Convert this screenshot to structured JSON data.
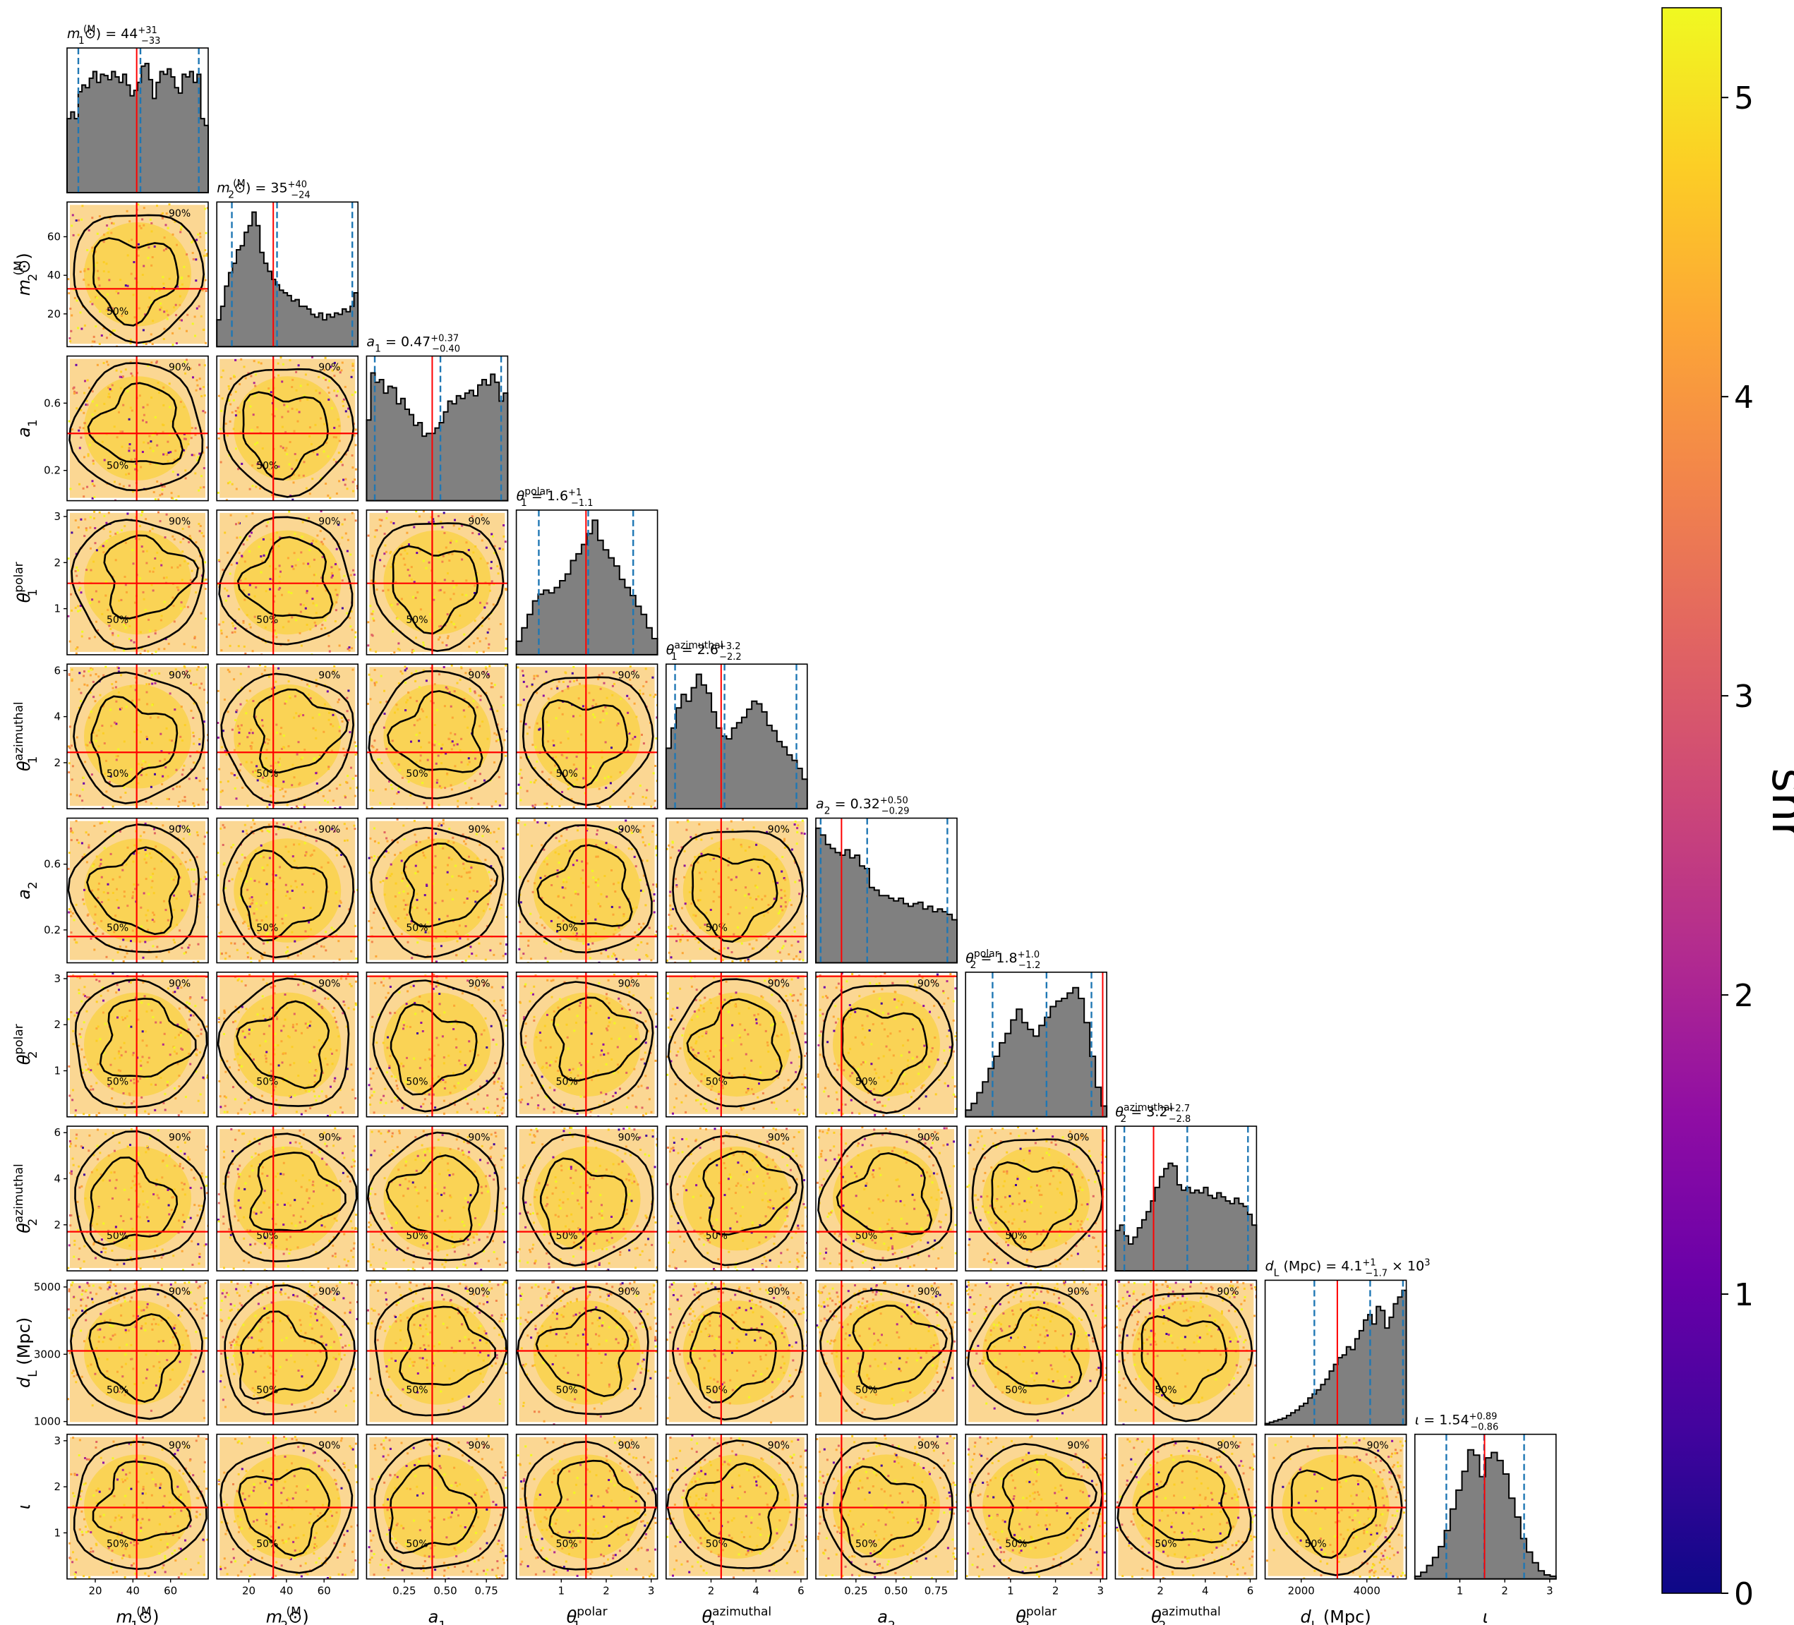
{
  "colors": {
    "hist_fill": "#808080",
    "hist_edge": "#000000",
    "truth_line": "#ff0000",
    "quantile_line": "#1f77b4",
    "contour": "#000000",
    "colormap": "plasma"
  },
  "chart_data": {
    "type": "scatter",
    "variant": "corner",
    "colorbar": {
      "label": "snr",
      "range": [
        0,
        5.3
      ],
      "ticks": [
        "0",
        "1",
        "2",
        "3",
        "4",
        "5"
      ]
    },
    "contour_levels": [
      "50%",
      "90%"
    ],
    "parameters": [
      {
        "key": "m1",
        "title": "m_1 (M_⊙) = 44^{+31}_{-33}",
        "title_parts": [
          "m",
          "1",
          " (M",
          "⊙",
          ") = 44",
          "+31",
          "−33"
        ],
        "xlabel_parts": [
          "m",
          "1",
          " (M",
          "⊙",
          ")"
        ],
        "range": [
          5,
          80
        ],
        "truth": 42,
        "quantiles": [
          11,
          44,
          75
        ],
        "ticks": [
          20,
          40,
          60
        ],
        "tick_labels": [
          "20",
          "40",
          "60"
        ]
      },
      {
        "key": "m2",
        "title": "m_2 (M_⊙) = 35^{+40}_{-24}",
        "title_parts": [
          "m",
          "2",
          " (M",
          "⊙",
          ") = 35",
          "+40",
          "−24"
        ],
        "xlabel_parts": [
          "m",
          "2",
          " (M",
          "⊙",
          ")"
        ],
        "range": [
          3,
          78
        ],
        "truth": 33,
        "quantiles": [
          11,
          35,
          75
        ],
        "ticks": [
          20,
          40,
          60
        ],
        "tick_labels": [
          "20",
          "40",
          "60"
        ]
      },
      {
        "key": "a1",
        "title": "a_1 = 0.47^{+0.37}_{-0.40}",
        "title_parts": [
          "a",
          "1",
          "",
          "",
          " = 0.47",
          "+0.37",
          "−0.40"
        ],
        "xlabel_parts": [
          "a",
          "1",
          "",
          "",
          ""
        ],
        "range": [
          0.02,
          0.88
        ],
        "truth": 0.42,
        "quantiles": [
          0.07,
          0.47,
          0.84
        ],
        "ticks": [
          0.25,
          0.5,
          0.75
        ],
        "tick_labels": [
          "0.25",
          "0.50",
          "0.75"
        ],
        "yticks": [
          0.2,
          0.6
        ],
        "ytick_labels": [
          "0.2",
          "0.6"
        ]
      },
      {
        "key": "theta1p",
        "title": "θ_1^polar = 1.6^{+1}_{-1.1}",
        "title_parts": [
          "θ",
          "1",
          "polar",
          "",
          " = 1.6",
          "+1",
          "−1.1"
        ],
        "xlabel_parts": [
          "θ",
          "1",
          "polar",
          "",
          ""
        ],
        "range": [
          0,
          3.14
        ],
        "truth": 1.55,
        "quantiles": [
          0.5,
          1.6,
          2.6
        ],
        "ticks": [
          1,
          2,
          3
        ],
        "tick_labels": [
          "1",
          "2",
          "3"
        ]
      },
      {
        "key": "theta1a",
        "title": "θ_1^azimuthal = 2.6^{+3.2}_{-2.2}",
        "title_parts": [
          "θ",
          "1",
          "azimuthal",
          "",
          " = 2.6",
          "+3.2",
          "−2.2"
        ],
        "xlabel_parts": [
          "θ",
          "1",
          "azimuthal",
          "",
          ""
        ],
        "range": [
          0,
          6.28
        ],
        "truth": 2.45,
        "quantiles": [
          0.4,
          2.6,
          5.8
        ],
        "ticks": [
          2,
          4,
          6
        ],
        "tick_labels": [
          "2",
          "4",
          "6"
        ]
      },
      {
        "key": "a2",
        "title": "a_2 = 0.32^{+0.50}_{-0.29}",
        "title_parts": [
          "a",
          "2",
          "",
          "",
          " = 0.32",
          "+0.50",
          "−0.29"
        ],
        "xlabel_parts": [
          "a",
          "2",
          "",
          "",
          ""
        ],
        "range": [
          0.0,
          0.88
        ],
        "truth": 0.16,
        "quantiles": [
          0.03,
          0.32,
          0.82
        ],
        "ticks": [
          0.25,
          0.5,
          0.75
        ],
        "tick_labels": [
          "0.25",
          "0.50",
          "0.75"
        ],
        "yticks": [
          0.2,
          0.6
        ],
        "ytick_labels": [
          "0.2",
          "0.6"
        ]
      },
      {
        "key": "theta2p",
        "title": "θ_2^polar = 1.8^{+1.0}_{-1.2}",
        "title_parts": [
          "θ",
          "2",
          "polar",
          "",
          " = 1.8",
          "+1.0",
          "−1.2"
        ],
        "xlabel_parts": [
          "θ",
          "2",
          "polar",
          "",
          ""
        ],
        "range": [
          0,
          3.14
        ],
        "truth": 3.05,
        "quantiles": [
          0.6,
          1.8,
          2.8
        ],
        "ticks": [
          1,
          2,
          3
        ],
        "tick_labels": [
          "1",
          "2",
          "3"
        ]
      },
      {
        "key": "theta2a",
        "title": "θ_2^azimuthal = 3.2^{+2.7}_{-2.8}",
        "title_parts": [
          "θ",
          "2",
          "azimuthal",
          "",
          " = 3.2",
          "+2.7",
          "−2.8"
        ],
        "xlabel_parts": [
          "θ",
          "2",
          "azimuthal",
          "",
          ""
        ],
        "range": [
          0,
          6.28
        ],
        "truth": 1.7,
        "quantiles": [
          0.4,
          3.2,
          5.9
        ],
        "ticks": [
          2,
          4,
          6
        ],
        "tick_labels": [
          "2",
          "4",
          "6"
        ]
      },
      {
        "key": "dL",
        "title": "d_L (Mpc) = 4.1^{+1}_{-1.7} × 10^3",
        "title_parts": [
          "d",
          "L",
          "",
          " (Mpc)",
          " = 4.1",
          "+1",
          "−1.7",
          " × 10",
          "3"
        ],
        "xlabel_parts": [
          "d",
          "L",
          "",
          "",
          " (Mpc)"
        ],
        "range": [
          900,
          5200
        ],
        "truth": 3100,
        "quantiles": [
          2400,
          4100,
          5100
        ],
        "ticks": [
          2000,
          4000
        ],
        "tick_labels": [
          "2000",
          "4000"
        ],
        "yticks": [
          1000,
          3000,
          5000
        ],
        "ytick_labels": [
          "1000",
          "3000",
          "5000"
        ]
      },
      {
        "key": "iota",
        "title": "ι = 1.54^{+0.89}_{-0.86}",
        "title_parts": [
          "ι",
          "",
          "",
          "",
          " = 1.54",
          "+0.89",
          "−0.86"
        ],
        "xlabel_parts": [
          "ι",
          "",
          "",
          "",
          ""
        ],
        "range": [
          0,
          3.14
        ],
        "truth": 1.55,
        "quantiles": [
          0.7,
          1.54,
          2.43
        ],
        "ticks": [
          1,
          2,
          3
        ],
        "tick_labels": [
          "1",
          "2",
          "3"
        ]
      }
    ],
    "histograms": {
      "m1": [
        0.55,
        0.6,
        0.55,
        0.75,
        0.8,
        0.78,
        0.85,
        0.9,
        0.82,
        0.88,
        0.87,
        0.84,
        0.9,
        0.86,
        0.82,
        0.88,
        0.8,
        0.72,
        0.76,
        0.82,
        0.94,
        0.96,
        0.84,
        0.7,
        0.82,
        0.9,
        0.88,
        0.92,
        0.86,
        0.78,
        0.74,
        0.88,
        0.86,
        0.9,
        0.82,
        0.88,
        0.55,
        0.5
      ],
      "m2": [
        0.2,
        0.3,
        0.45,
        0.55,
        0.62,
        0.72,
        0.75,
        0.85,
        0.9,
        1.0,
        0.9,
        0.7,
        0.62,
        0.56,
        0.5,
        0.46,
        0.42,
        0.4,
        0.38,
        0.34,
        0.35,
        0.3,
        0.3,
        0.28,
        0.24,
        0.22,
        0.25,
        0.2,
        0.24,
        0.22,
        0.25,
        0.24,
        0.28,
        0.26,
        0.3,
        0.4
      ],
      "a1": [
        0.6,
        0.95,
        0.88,
        0.9,
        0.8,
        0.85,
        0.84,
        0.72,
        0.76,
        0.68,
        0.64,
        0.56,
        0.58,
        0.48,
        0.5,
        0.5,
        0.54,
        0.58,
        0.66,
        0.74,
        0.72,
        0.78,
        0.76,
        0.8,
        0.82,
        0.78,
        0.86,
        0.9,
        0.86,
        0.94,
        0.88,
        0.74,
        0.8
      ],
      "theta1p": [
        0.1,
        0.2,
        0.3,
        0.4,
        0.45,
        0.48,
        0.46,
        0.5,
        0.55,
        0.6,
        0.7,
        0.75,
        0.82,
        0.9,
        1.0,
        0.85,
        0.78,
        0.72,
        0.66,
        0.56,
        0.5,
        0.44,
        0.36,
        0.3,
        0.2,
        0.12
      ],
      "theta1a": [
        0.45,
        0.6,
        0.75,
        0.85,
        0.8,
        0.9,
        1.0,
        0.92,
        0.86,
        0.72,
        0.6,
        0.54,
        0.52,
        0.6,
        0.64,
        0.68,
        0.74,
        0.8,
        0.78,
        0.72,
        0.62,
        0.58,
        0.5,
        0.46,
        0.4,
        0.36,
        0.3,
        0.22
      ],
      "a2": [
        1.0,
        0.95,
        0.88,
        0.85,
        0.82,
        0.8,
        0.84,
        0.78,
        0.8,
        0.72,
        0.7,
        0.56,
        0.54,
        0.5,
        0.5,
        0.48,
        0.46,
        0.48,
        0.44,
        0.42,
        0.44,
        0.45,
        0.4,
        0.42,
        0.38,
        0.4,
        0.38,
        0.36,
        0.32
      ],
      "theta2p": [
        0.05,
        0.1,
        0.18,
        0.26,
        0.36,
        0.45,
        0.55,
        0.62,
        0.72,
        0.8,
        0.7,
        0.65,
        0.6,
        0.68,
        0.74,
        0.82,
        0.86,
        0.88,
        0.92,
        0.96,
        0.88,
        0.7,
        0.45,
        0.22,
        0.08
      ],
      "theta2a": [
        0.3,
        0.34,
        0.26,
        0.2,
        0.25,
        0.32,
        0.38,
        0.44,
        0.52,
        0.62,
        0.7,
        0.76,
        0.8,
        0.78,
        0.64,
        0.6,
        0.62,
        0.58,
        0.6,
        0.58,
        0.62,
        0.56,
        0.54,
        0.58,
        0.55,
        0.52,
        0.5,
        0.54,
        0.5,
        0.48,
        0.42,
        0.34
      ],
      "dL": [
        0.01,
        0.02,
        0.03,
        0.04,
        0.05,
        0.07,
        0.09,
        0.11,
        0.14,
        0.16,
        0.2,
        0.23,
        0.26,
        0.3,
        0.34,
        0.4,
        0.45,
        0.5,
        0.52,
        0.58,
        0.56,
        0.64,
        0.7,
        0.78,
        0.82,
        0.75,
        0.88,
        0.85,
        0.72,
        0.8,
        0.9,
        0.95,
        1.0
      ],
      "iota": [
        0.02,
        0.05,
        0.1,
        0.16,
        0.24,
        0.36,
        0.52,
        0.66,
        0.8,
        0.96,
        0.92,
        0.76,
        0.9,
        0.94,
        0.88,
        0.78,
        0.6,
        0.46,
        0.3,
        0.2,
        0.12,
        0.06,
        0.03,
        0.02
      ]
    }
  }
}
